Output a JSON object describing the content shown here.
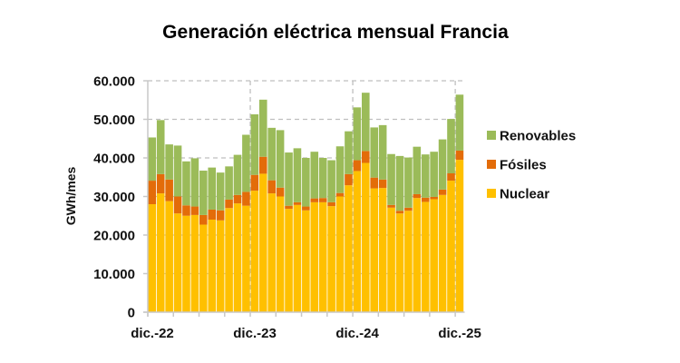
{
  "chart_data": {
    "type": "bar",
    "stacked": true,
    "title": "Generación eléctrica mensual Francia",
    "xlabel": "",
    "ylabel": "GWh/mes",
    "ylim": [
      0,
      60000
    ],
    "yticks": [
      0,
      10000,
      20000,
      30000,
      40000,
      50000,
      60000
    ],
    "ytick_labels": [
      "0",
      "10.000",
      "20.000",
      "30.000",
      "40.000",
      "50.000",
      "60.000"
    ],
    "grid": "dashed horizontal and yearly vertical",
    "legend_position": "right",
    "categories": [
      "dic.-22",
      "ene.-23",
      "feb.-23",
      "mar.-23",
      "abr.-23",
      "may.-23",
      "jun.-23",
      "jul.-23",
      "ago.-23",
      "sep.-23",
      "oct.-23",
      "nov.-23",
      "dic.-23",
      "ene.-24",
      "feb.-24",
      "mar.-24",
      "abr.-24",
      "may.-24",
      "jun.-24",
      "jul.-24",
      "ago.-24",
      "sep.-24",
      "oct.-24",
      "nov.-24",
      "dic.-24",
      "ene.-25",
      "feb.-25",
      "mar.-25",
      "abr.-25",
      "may.-25",
      "jun.-25",
      "jul.-25",
      "ago.-25",
      "sep.-25",
      "oct.-25",
      "nov.-25",
      "dic.-25"
    ],
    "xtick_labels": [
      {
        "index": 0,
        "label": "dic.-22"
      },
      {
        "index": 12,
        "label": "dic.-23"
      },
      {
        "index": 24,
        "label": "dic.-24"
      },
      {
        "index": 36,
        "label": "dic.-25"
      }
    ],
    "series": [
      {
        "name": "Nuclear",
        "color": "#FFC000",
        "values": [
          28000,
          30800,
          28800,
          25600,
          25000,
          25200,
          22700,
          24000,
          23800,
          27000,
          28200,
          27600,
          31500,
          35900,
          30800,
          30000,
          26800,
          27800,
          26400,
          28500,
          28500,
          27500,
          30000,
          32900,
          36600,
          38700,
          32100,
          32200,
          27100,
          25600,
          26300,
          29600,
          28600,
          29300,
          30400,
          34100,
          39500
        ]
      },
      {
        "name": "Fósiles",
        "color": "#E36C09",
        "values": [
          6100,
          5000,
          5600,
          4400,
          2700,
          2200,
          2500,
          2600,
          2600,
          2200,
          2200,
          3600,
          4100,
          4400,
          3400,
          2300,
          800,
          700,
          1000,
          1000,
          1100,
          1000,
          900,
          2900,
          2800,
          3100,
          2800,
          2200,
          700,
          700,
          800,
          1000,
          1100,
          600,
          1400,
          1900,
          2400
        ]
      },
      {
        "name": "Renovables",
        "color": "#9BBB59",
        "values": [
          11200,
          14000,
          9100,
          13200,
          11400,
          12500,
          11500,
          10900,
          9800,
          8600,
          10400,
          14800,
          15700,
          14800,
          13600,
          14900,
          13800,
          14000,
          12600,
          12100,
          10400,
          10900,
          12100,
          11100,
          13700,
          15100,
          13000,
          14100,
          13200,
          14200,
          13000,
          12300,
          11200,
          11700,
          13000,
          14100,
          14500
        ]
      }
    ]
  }
}
